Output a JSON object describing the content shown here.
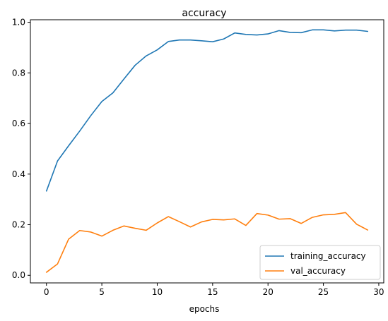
{
  "chart_data": {
    "type": "line",
    "title": "accuracy",
    "xlabel": "epochs",
    "ylabel": "",
    "xlim": [
      -1.45,
      30.45
    ],
    "ylim": [
      -0.03,
      1.01
    ],
    "grid": false,
    "legend_position": "lower-right",
    "x_ticks": [
      0,
      5,
      10,
      15,
      20,
      25,
      30
    ],
    "y_ticks": [
      0.0,
      0.2,
      0.4,
      0.6,
      0.8,
      1.0
    ],
    "x": [
      0,
      1,
      2,
      3,
      4,
      5,
      6,
      7,
      8,
      9,
      10,
      11,
      12,
      13,
      14,
      15,
      16,
      17,
      18,
      19,
      20,
      21,
      22,
      23,
      24,
      25,
      26,
      27,
      28,
      29
    ],
    "series": [
      {
        "name": "training_accuracy",
        "color": "#1f77b4",
        "values": [
          0.333,
          0.452,
          0.512,
          0.57,
          0.631,
          0.687,
          0.721,
          0.776,
          0.83,
          0.867,
          0.891,
          0.924,
          0.93,
          0.93,
          0.927,
          0.923,
          0.934,
          0.958,
          0.952,
          0.95,
          0.954,
          0.967,
          0.96,
          0.959,
          0.97,
          0.97,
          0.966,
          0.969,
          0.969,
          0.964
        ]
      },
      {
        "name": "val_accuracy",
        "color": "#ff7f0e",
        "values": [
          0.012,
          0.045,
          0.143,
          0.177,
          0.171,
          0.155,
          0.178,
          0.195,
          0.186,
          0.178,
          0.207,
          0.232,
          0.212,
          0.191,
          0.211,
          0.221,
          0.219,
          0.223,
          0.197,
          0.244,
          0.238,
          0.222,
          0.224,
          0.205,
          0.229,
          0.239,
          0.241,
          0.248,
          0.202,
          0.179
        ]
      }
    ]
  }
}
